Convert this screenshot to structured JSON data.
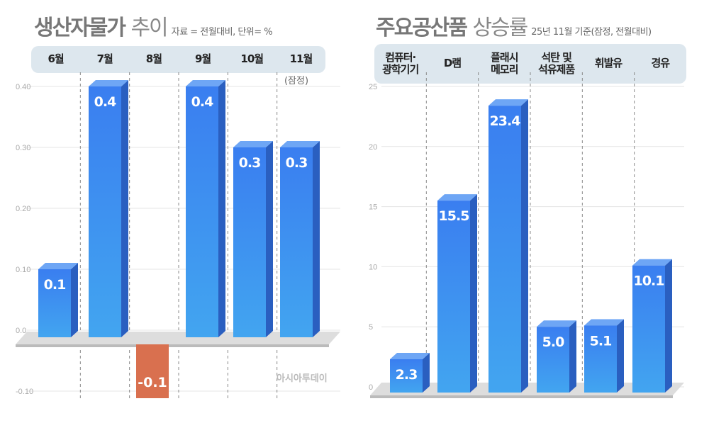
{
  "chart_data": [
    {
      "type": "bar",
      "title": "생산자물가",
      "title_suffix": "추이",
      "subtitle": "자료 = 전월대비, 단위= %",
      "categories": [
        "6월",
        "7월",
        "8월",
        "9월",
        "10월",
        "11월"
      ],
      "values": [
        0.1,
        0.4,
        -0.1,
        0.4,
        0.3,
        0.3
      ],
      "value_labels": [
        "0.1",
        "0.4",
        "-0.1",
        "0.4",
        "0.3",
        "0.3"
      ],
      "note": "(잠정)",
      "yticks": [
        "0.40",
        "0.30",
        "0.20",
        "0.10",
        "0.0",
        "-0.10"
      ],
      "ylim": [
        -0.1,
        0.4
      ],
      "watermark": "아시아투데이",
      "colors": {
        "positive": "#3d8ef0",
        "negative": "#d9704f"
      }
    },
    {
      "type": "bar",
      "title": "주요공산품",
      "title_suffix": "상승률",
      "subtitle": "25년 11월 기준(잠정, 전월대비)",
      "categories": [
        "컴퓨터·\n광학기기",
        "D램",
        "플래시\n메모리",
        "석탄 및\n석유제품",
        "휘발유",
        "경유"
      ],
      "values": [
        2.3,
        15.5,
        23.4,
        5.0,
        5.1,
        10.1
      ],
      "value_labels": [
        "2.3",
        "15.5",
        "23.4",
        "5.0",
        "5.1",
        "10.1"
      ],
      "yticks": [
        "25",
        "20",
        "15",
        "10",
        "5",
        "0"
      ],
      "ylim": [
        0,
        25
      ],
      "colors": {
        "positive": "#3d8ef0"
      }
    }
  ]
}
